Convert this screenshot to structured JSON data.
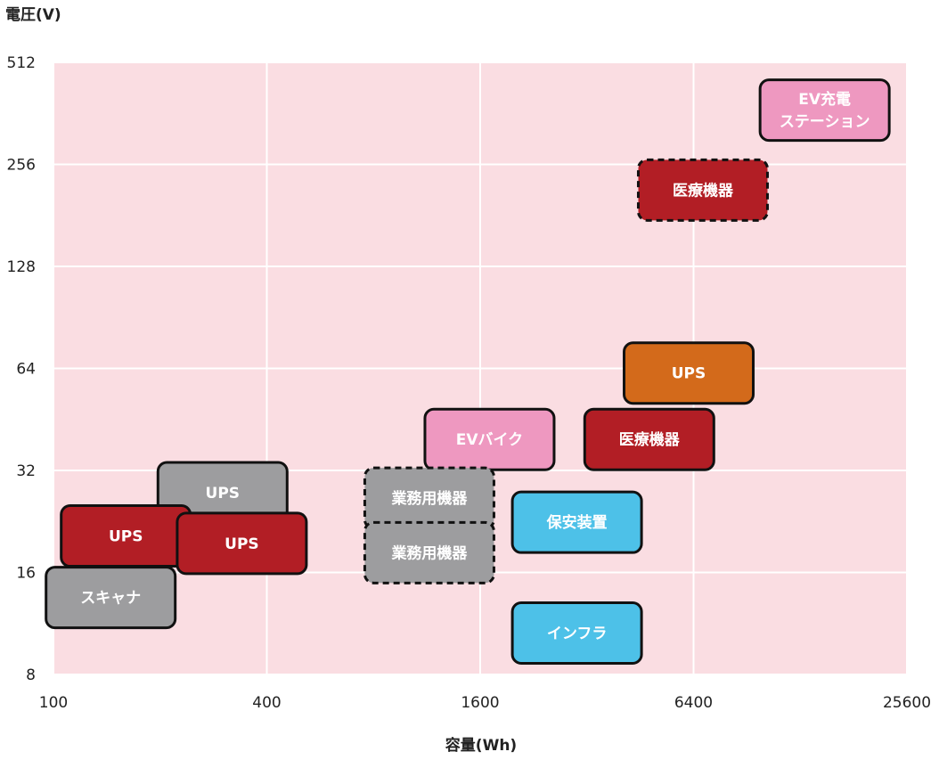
{
  "chart_data": {
    "type": "scatter",
    "title": "",
    "xlabel": "容量(Wh)",
    "ylabel": "電圧(V)",
    "x_scale": "log2",
    "y_scale": "log2",
    "xlim": [
      100,
      25600
    ],
    "ylim": [
      8,
      512
    ],
    "x_ticks": [
      "100",
      "400",
      "1600",
      "6400",
      "25600"
    ],
    "y_ticks": [
      "512",
      "256",
      "128",
      "64",
      "32",
      "16",
      "8"
    ],
    "grid": true,
    "colors": {
      "background": "#fadde2",
      "grid": "#ffffff",
      "red": "#b21e25",
      "gray": "#9d9d9f",
      "pink": "#ee98c0",
      "orange": "#d36a1b",
      "cyan": "#4dc1e8"
    },
    "items": [
      {
        "label": "EV充電\nステーション",
        "x": 15000,
        "y": 370,
        "color": "pink",
        "dashed": false
      },
      {
        "label": "医療機器",
        "x": 6800,
        "y": 215,
        "color": "red",
        "dashed": true
      },
      {
        "label": "UPS",
        "x": 6200,
        "y": 62,
        "color": "orange",
        "dashed": false
      },
      {
        "label": "EVバイク",
        "x": 1700,
        "y": 39.5,
        "color": "pink",
        "dashed": false
      },
      {
        "label": "医療機器",
        "x": 4800,
        "y": 39.5,
        "color": "red",
        "dashed": false
      },
      {
        "label": "業務用機器",
        "x": 1150,
        "y": 26.5,
        "color": "gray",
        "dashed": true
      },
      {
        "label": "業務用機器",
        "x": 1150,
        "y": 18.3,
        "color": "gray",
        "dashed": true
      },
      {
        "label": "保安装置",
        "x": 3000,
        "y": 22.5,
        "color": "cyan",
        "dashed": false
      },
      {
        "label": "インフラ",
        "x": 3000,
        "y": 10.6,
        "color": "cyan",
        "dashed": false
      },
      {
        "label": "UPS",
        "x": 300,
        "y": 27.5,
        "color": "gray",
        "dashed": false
      },
      {
        "label": "UPS",
        "x": 160,
        "y": 20.5,
        "color": "red",
        "dashed": false
      },
      {
        "label": "UPS",
        "x": 340,
        "y": 19.5,
        "color": "red",
        "dashed": false
      },
      {
        "label": "スキャナ",
        "x": 145,
        "y": 13.5,
        "color": "gray",
        "dashed": false
      }
    ]
  }
}
